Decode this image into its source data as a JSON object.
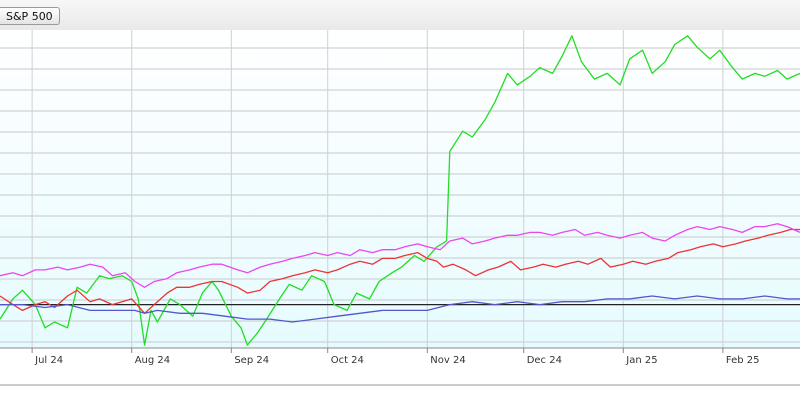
{
  "legend": {
    "button_label": "S&P 500"
  },
  "chart_data": {
    "type": "line",
    "grid": true,
    "x_range": [
      "2024-06-21",
      "2025-02-25"
    ],
    "y_range": [
      -0.15,
      0.95
    ],
    "baseline": 0,
    "x_ticks": [
      {
        "label": "Jul 24",
        "date": "2024-07-01"
      },
      {
        "label": "Aug 24",
        "date": "2024-08-01"
      },
      {
        "label": "Sep 24",
        "date": "2024-09-01"
      },
      {
        "label": "Oct 24",
        "date": "2024-10-01"
      },
      {
        "label": "Nov 24",
        "date": "2024-11-01"
      },
      {
        "label": "Dec 24",
        "date": "2024-12-01"
      },
      {
        "label": "Jan 25",
        "date": "2025-01-01"
      },
      {
        "label": "Feb 25",
        "date": "2025-02-01"
      }
    ],
    "series": [
      {
        "color": "#22dd22",
        "points": [
          [
            "2024-06-21",
            -0.05
          ],
          [
            "2024-06-25",
            0.02
          ],
          [
            "2024-06-28",
            0.05
          ],
          [
            "2024-07-02",
            0.0
          ],
          [
            "2024-07-05",
            -0.08
          ],
          [
            "2024-07-08",
            -0.06
          ],
          [
            "2024-07-12",
            -0.08
          ],
          [
            "2024-07-15",
            0.06
          ],
          [
            "2024-07-18",
            0.04
          ],
          [
            "2024-07-22",
            0.1
          ],
          [
            "2024-07-25",
            0.09
          ],
          [
            "2024-07-29",
            0.1
          ],
          [
            "2024-08-01",
            0.08
          ],
          [
            "2024-08-03",
            0.02
          ],
          [
            "2024-08-05",
            -0.14
          ],
          [
            "2024-08-07",
            -0.02
          ],
          [
            "2024-08-09",
            -0.06
          ],
          [
            "2024-08-13",
            0.02
          ],
          [
            "2024-08-16",
            0.0
          ],
          [
            "2024-08-20",
            -0.04
          ],
          [
            "2024-08-23",
            0.04
          ],
          [
            "2024-08-26",
            0.08
          ],
          [
            "2024-08-28",
            0.05
          ],
          [
            "2024-09-01",
            -0.04
          ],
          [
            "2024-09-04",
            -0.08
          ],
          [
            "2024-09-06",
            -0.14
          ],
          [
            "2024-09-09",
            -0.1
          ],
          [
            "2024-09-12",
            -0.05
          ],
          [
            "2024-09-16",
            0.02
          ],
          [
            "2024-09-19",
            0.07
          ],
          [
            "2024-09-23",
            0.05
          ],
          [
            "2024-09-26",
            0.1
          ],
          [
            "2024-09-30",
            0.08
          ],
          [
            "2024-10-03",
            0.0
          ],
          [
            "2024-10-07",
            -0.02
          ],
          [
            "2024-10-10",
            0.04
          ],
          [
            "2024-10-14",
            0.02
          ],
          [
            "2024-10-17",
            0.08
          ],
          [
            "2024-10-21",
            0.11
          ],
          [
            "2024-10-24",
            0.13
          ],
          [
            "2024-10-28",
            0.17
          ],
          [
            "2024-10-31",
            0.15
          ],
          [
            "2024-11-04",
            0.2
          ],
          [
            "2024-11-07",
            0.22
          ],
          [
            "2024-11-08",
            0.53
          ],
          [
            "2024-11-12",
            0.6
          ],
          [
            "2024-11-15",
            0.58
          ],
          [
            "2024-11-19",
            0.64
          ],
          [
            "2024-11-22",
            0.7
          ],
          [
            "2024-11-26",
            0.8
          ],
          [
            "2024-11-29",
            0.76
          ],
          [
            "2024-12-03",
            0.79
          ],
          [
            "2024-12-06",
            0.82
          ],
          [
            "2024-12-10",
            0.8
          ],
          [
            "2024-12-13",
            0.86
          ],
          [
            "2024-12-16",
            0.93
          ],
          [
            "2024-12-19",
            0.84
          ],
          [
            "2024-12-23",
            0.78
          ],
          [
            "2024-12-27",
            0.8
          ],
          [
            "2024-12-31",
            0.76
          ],
          [
            "2025-01-03",
            0.85
          ],
          [
            "2025-01-07",
            0.88
          ],
          [
            "2025-01-10",
            0.8
          ],
          [
            "2025-01-14",
            0.84
          ],
          [
            "2025-01-17",
            0.9
          ],
          [
            "2025-01-21",
            0.93
          ],
          [
            "2025-01-24",
            0.89
          ],
          [
            "2025-01-28",
            0.85
          ],
          [
            "2025-01-31",
            0.88
          ],
          [
            "2025-02-04",
            0.82
          ],
          [
            "2025-02-07",
            0.78
          ],
          [
            "2025-02-11",
            0.8
          ],
          [
            "2025-02-14",
            0.79
          ],
          [
            "2025-02-18",
            0.81
          ],
          [
            "2025-02-21",
            0.78
          ],
          [
            "2025-02-25",
            0.8
          ]
        ]
      },
      {
        "color": "#ee3333",
        "points": [
          [
            "2024-06-21",
            0.03
          ],
          [
            "2024-06-25",
            0.0
          ],
          [
            "2024-06-28",
            -0.02
          ],
          [
            "2024-07-02",
            0.0
          ],
          [
            "2024-07-05",
            0.01
          ],
          [
            "2024-07-08",
            -0.01
          ],
          [
            "2024-07-12",
            0.03
          ],
          [
            "2024-07-15",
            0.05
          ],
          [
            "2024-07-19",
            0.01
          ],
          [
            "2024-07-22",
            0.02
          ],
          [
            "2024-07-26",
            0.0
          ],
          [
            "2024-07-29",
            0.01
          ],
          [
            "2024-08-01",
            0.02
          ],
          [
            "2024-08-05",
            -0.03
          ],
          [
            "2024-08-08",
            0.0
          ],
          [
            "2024-08-12",
            0.04
          ],
          [
            "2024-08-15",
            0.06
          ],
          [
            "2024-08-19",
            0.06
          ],
          [
            "2024-08-22",
            0.07
          ],
          [
            "2024-08-26",
            0.08
          ],
          [
            "2024-08-29",
            0.08
          ],
          [
            "2024-09-03",
            0.06
          ],
          [
            "2024-09-06",
            0.04
          ],
          [
            "2024-09-10",
            0.05
          ],
          [
            "2024-09-13",
            0.08
          ],
          [
            "2024-09-17",
            0.09
          ],
          [
            "2024-09-20",
            0.1
          ],
          [
            "2024-09-24",
            0.11
          ],
          [
            "2024-09-27",
            0.12
          ],
          [
            "2024-10-01",
            0.11
          ],
          [
            "2024-10-04",
            0.12
          ],
          [
            "2024-10-08",
            0.14
          ],
          [
            "2024-10-11",
            0.15
          ],
          [
            "2024-10-15",
            0.14
          ],
          [
            "2024-10-18",
            0.16
          ],
          [
            "2024-10-22",
            0.16
          ],
          [
            "2024-10-25",
            0.17
          ],
          [
            "2024-10-29",
            0.18
          ],
          [
            "2024-11-01",
            0.16
          ],
          [
            "2024-11-04",
            0.15
          ],
          [
            "2024-11-06",
            0.13
          ],
          [
            "2024-11-09",
            0.14
          ],
          [
            "2024-11-13",
            0.12
          ],
          [
            "2024-11-16",
            0.1
          ],
          [
            "2024-11-20",
            0.12
          ],
          [
            "2024-11-23",
            0.13
          ],
          [
            "2024-11-27",
            0.15
          ],
          [
            "2024-11-30",
            0.12
          ],
          [
            "2024-12-04",
            0.13
          ],
          [
            "2024-12-07",
            0.14
          ],
          [
            "2024-12-11",
            0.13
          ],
          [
            "2024-12-14",
            0.14
          ],
          [
            "2024-12-18",
            0.15
          ],
          [
            "2024-12-21",
            0.14
          ],
          [
            "2024-12-25",
            0.16
          ],
          [
            "2024-12-28",
            0.13
          ],
          [
            "2025-01-01",
            0.14
          ],
          [
            "2025-01-04",
            0.15
          ],
          [
            "2025-01-08",
            0.14
          ],
          [
            "2025-01-11",
            0.15
          ],
          [
            "2025-01-15",
            0.16
          ],
          [
            "2025-01-18",
            0.18
          ],
          [
            "2025-01-22",
            0.19
          ],
          [
            "2025-01-25",
            0.2
          ],
          [
            "2025-01-29",
            0.21
          ],
          [
            "2025-02-01",
            0.2
          ],
          [
            "2025-02-05",
            0.21
          ],
          [
            "2025-02-08",
            0.22
          ],
          [
            "2025-02-12",
            0.23
          ],
          [
            "2025-02-15",
            0.24
          ],
          [
            "2025-02-19",
            0.25
          ],
          [
            "2025-02-22",
            0.26
          ],
          [
            "2025-02-25",
            0.26
          ]
        ]
      },
      {
        "color": "#ee44ee",
        "points": [
          [
            "2024-06-21",
            0.1
          ],
          [
            "2024-06-25",
            0.11
          ],
          [
            "2024-06-28",
            0.1
          ],
          [
            "2024-07-02",
            0.12
          ],
          [
            "2024-07-05",
            0.12
          ],
          [
            "2024-07-09",
            0.13
          ],
          [
            "2024-07-12",
            0.12
          ],
          [
            "2024-07-16",
            0.13
          ],
          [
            "2024-07-19",
            0.14
          ],
          [
            "2024-07-23",
            0.13
          ],
          [
            "2024-07-26",
            0.1
          ],
          [
            "2024-07-30",
            0.11
          ],
          [
            "2024-08-02",
            0.08
          ],
          [
            "2024-08-05",
            0.06
          ],
          [
            "2024-08-08",
            0.08
          ],
          [
            "2024-08-12",
            0.09
          ],
          [
            "2024-08-15",
            0.11
          ],
          [
            "2024-08-19",
            0.12
          ],
          [
            "2024-08-22",
            0.13
          ],
          [
            "2024-08-26",
            0.14
          ],
          [
            "2024-08-29",
            0.14
          ],
          [
            "2024-09-03",
            0.12
          ],
          [
            "2024-09-06",
            0.11
          ],
          [
            "2024-09-10",
            0.13
          ],
          [
            "2024-09-13",
            0.14
          ],
          [
            "2024-09-17",
            0.15
          ],
          [
            "2024-09-20",
            0.16
          ],
          [
            "2024-09-24",
            0.17
          ],
          [
            "2024-09-27",
            0.18
          ],
          [
            "2024-10-01",
            0.17
          ],
          [
            "2024-10-04",
            0.18
          ],
          [
            "2024-10-08",
            0.17
          ],
          [
            "2024-10-11",
            0.19
          ],
          [
            "2024-10-15",
            0.18
          ],
          [
            "2024-10-18",
            0.19
          ],
          [
            "2024-10-22",
            0.19
          ],
          [
            "2024-10-25",
            0.2
          ],
          [
            "2024-10-29",
            0.21
          ],
          [
            "2024-11-01",
            0.2
          ],
          [
            "2024-11-05",
            0.19
          ],
          [
            "2024-11-08",
            0.22
          ],
          [
            "2024-11-12",
            0.23
          ],
          [
            "2024-11-15",
            0.21
          ],
          [
            "2024-11-19",
            0.22
          ],
          [
            "2024-11-22",
            0.23
          ],
          [
            "2024-11-26",
            0.24
          ],
          [
            "2024-11-29",
            0.24
          ],
          [
            "2024-12-03",
            0.25
          ],
          [
            "2024-12-06",
            0.25
          ],
          [
            "2024-12-10",
            0.24
          ],
          [
            "2024-12-13",
            0.25
          ],
          [
            "2024-12-17",
            0.26
          ],
          [
            "2024-12-20",
            0.24
          ],
          [
            "2024-12-24",
            0.25
          ],
          [
            "2024-12-27",
            0.24
          ],
          [
            "2024-12-31",
            0.23
          ],
          [
            "2025-01-03",
            0.24
          ],
          [
            "2025-01-07",
            0.25
          ],
          [
            "2025-01-10",
            0.23
          ],
          [
            "2025-01-14",
            0.22
          ],
          [
            "2025-01-17",
            0.24
          ],
          [
            "2025-01-21",
            0.26
          ],
          [
            "2025-01-24",
            0.27
          ],
          [
            "2025-01-28",
            0.26
          ],
          [
            "2025-01-31",
            0.27
          ],
          [
            "2025-02-04",
            0.26
          ],
          [
            "2025-02-07",
            0.25
          ],
          [
            "2025-02-11",
            0.27
          ],
          [
            "2025-02-14",
            0.27
          ],
          [
            "2025-02-18",
            0.28
          ],
          [
            "2025-02-21",
            0.27
          ],
          [
            "2025-02-25",
            0.25
          ]
        ]
      },
      {
        "color": "#5555cc",
        "points": [
          [
            "2024-06-21",
            0.0
          ],
          [
            "2024-06-28",
            0.0
          ],
          [
            "2024-07-05",
            -0.01
          ],
          [
            "2024-07-12",
            0.0
          ],
          [
            "2024-07-19",
            -0.02
          ],
          [
            "2024-07-26",
            -0.02
          ],
          [
            "2024-08-02",
            -0.02
          ],
          [
            "2024-08-05",
            -0.03
          ],
          [
            "2024-08-09",
            -0.02
          ],
          [
            "2024-08-16",
            -0.03
          ],
          [
            "2024-08-23",
            -0.03
          ],
          [
            "2024-08-30",
            -0.04
          ],
          [
            "2024-09-06",
            -0.05
          ],
          [
            "2024-09-13",
            -0.05
          ],
          [
            "2024-09-20",
            -0.06
          ],
          [
            "2024-09-27",
            -0.05
          ],
          [
            "2024-10-04",
            -0.04
          ],
          [
            "2024-10-11",
            -0.03
          ],
          [
            "2024-10-18",
            -0.02
          ],
          [
            "2024-10-25",
            -0.02
          ],
          [
            "2024-11-01",
            -0.02
          ],
          [
            "2024-11-08",
            0.0
          ],
          [
            "2024-11-15",
            0.01
          ],
          [
            "2024-11-22",
            0.0
          ],
          [
            "2024-11-29",
            0.01
          ],
          [
            "2024-12-06",
            0.0
          ],
          [
            "2024-12-13",
            0.01
          ],
          [
            "2024-12-20",
            0.01
          ],
          [
            "2024-12-27",
            0.02
          ],
          [
            "2025-01-03",
            0.02
          ],
          [
            "2025-01-10",
            0.03
          ],
          [
            "2025-01-17",
            0.02
          ],
          [
            "2025-01-24",
            0.03
          ],
          [
            "2025-01-31",
            0.02
          ],
          [
            "2025-02-07",
            0.02
          ],
          [
            "2025-02-14",
            0.03
          ],
          [
            "2025-02-21",
            0.02
          ],
          [
            "2025-02-25",
            0.02
          ]
        ]
      }
    ]
  }
}
